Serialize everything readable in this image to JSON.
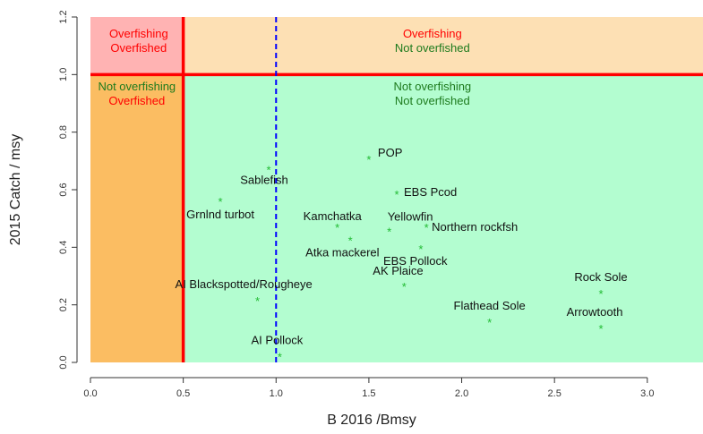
{
  "chart_data": {
    "type": "scatter",
    "xlabel": "B 2016 /Bmsy",
    "ylabel": "2015 Catch / msy",
    "xlim": [
      0,
      3.3
    ],
    "ylim": [
      0,
      1.2
    ],
    "x_ticks": [
      "0.0",
      "0.5",
      "1.0",
      "1.5",
      "2.0",
      "2.5",
      "3.0"
    ],
    "y_ticks": [
      "0.0",
      "0.2",
      "0.4",
      "0.6",
      "0.8",
      "1.0",
      "1.2"
    ],
    "grid": false,
    "reference_lines": [
      {
        "orientation": "vertical",
        "value": 0.5,
        "style": "solid",
        "color": "#ff0000"
      },
      {
        "orientation": "horizontal",
        "value": 1.0,
        "style": "solid",
        "color": "#ff0000"
      },
      {
        "orientation": "vertical",
        "value": 1.0,
        "style": "dashed",
        "color": "#0000ff"
      }
    ],
    "regions": [
      {
        "lines": [
          {
            "text": "Overfishing",
            "color": "#ff0000"
          },
          {
            "text": "Overfished",
            "color": "#ff0000"
          }
        ],
        "fill": "#ffb3b3"
      },
      {
        "lines": [
          {
            "text": "Overfishing",
            "color": "#ff0000"
          },
          {
            "text": "Not overfished",
            "color": "#1e7b1e"
          }
        ],
        "fill": "#fde0b4"
      },
      {
        "lines": [
          {
            "text": "Not overfishing",
            "color": "#1e7b1e"
          },
          {
            "text": "Overfished",
            "color": "#ff0000"
          }
        ],
        "fill": "#fbbd62"
      },
      {
        "lines": [
          {
            "text": "Not overfishing",
            "color": "#1e7b1e"
          },
          {
            "text": "Not overfished",
            "color": "#1e7b1e"
          }
        ],
        "fill": "#b3fdd0"
      }
    ],
    "marker": "*",
    "marker_color": "#22bb33",
    "points": [
      {
        "label": "POP",
        "x": 1.5,
        "y": 0.705
      },
      {
        "label": "Sablefish",
        "x": 0.96,
        "y": 0.67
      },
      {
        "label": "EBS Pcod",
        "x": 1.65,
        "y": 0.585
      },
      {
        "label": "Grnlnd turbot",
        "x": 0.7,
        "y": 0.56
      },
      {
        "label": "Kamchatka",
        "x": 1.33,
        "y": 0.47
      },
      {
        "label": "Yellowfin",
        "x": 1.61,
        "y": 0.455
      },
      {
        "label": "Northern rockfsh",
        "x": 1.81,
        "y": 0.47
      },
      {
        "label": "Atka mackerel",
        "x": 1.4,
        "y": 0.425
      },
      {
        "label": "EBS Pollock",
        "x": 1.78,
        "y": 0.395
      },
      {
        "label": "AK Plaice",
        "x": 1.69,
        "y": 0.265
      },
      {
        "label": "AI Blackspotted/Rougheye",
        "x": 0.9,
        "y": 0.215
      },
      {
        "label": "Rock Sole",
        "x": 2.75,
        "y": 0.24
      },
      {
        "label": "Flathead Sole",
        "x": 2.15,
        "y": 0.14
      },
      {
        "label": "Arrowtooth",
        "x": 2.75,
        "y": 0.118
      },
      {
        "label": "AI Pollock",
        "x": 1.02,
        "y": 0.02
      }
    ]
  }
}
